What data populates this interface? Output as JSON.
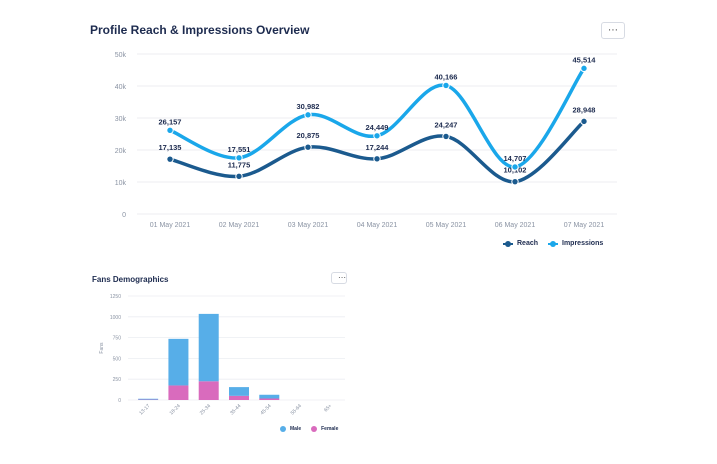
{
  "colors": {
    "reach": "#1b5a8e",
    "impressions": "#1aa7ea",
    "male": "#57aee8",
    "female": "#d96bbd",
    "grid": "#eceef2",
    "tick": "#8a93a3"
  },
  "main": {
    "title": "Profile Reach & Impressions Overview",
    "more_label": "⋯"
  },
  "fans": {
    "title": "Fans Demographics",
    "more_label": "⋯"
  },
  "chart_data": [
    {
      "type": "line",
      "title": "Profile Reach & Impressions Overview",
      "categories": [
        "01 May 2021",
        "02 May 2021",
        "03 May 2021",
        "04 May 2021",
        "05 May 2021",
        "06 May 2021",
        "07 May 2021"
      ],
      "series": [
        {
          "name": "Reach",
          "values": [
            17135,
            11775,
            20875,
            17244,
            24247,
            10102,
            28948
          ],
          "labels": [
            "17,135",
            "11,775",
            "20,875",
            "17,244",
            "24,247",
            "10,102",
            "28,948"
          ]
        },
        {
          "name": "Impressions",
          "values": [
            26157,
            17551,
            30982,
            24449,
            40166,
            14707,
            45514
          ],
          "labels": [
            "26,157",
            "17,551",
            "30,982",
            "24,449",
            "40,166",
            "14,707",
            "45,514"
          ]
        }
      ],
      "ylim": [
        0,
        50000
      ],
      "yticks": [
        "0",
        "10k",
        "20k",
        "30k",
        "40k",
        "50k"
      ],
      "grid": true,
      "legend": "bottom-right"
    },
    {
      "type": "bar",
      "stacked": true,
      "title": "Fans Demographics",
      "ylabel": "Fans",
      "categories": [
        "13-17",
        "18-24",
        "25-34",
        "35-44",
        "45-54",
        "55-64",
        "65+"
      ],
      "series": [
        {
          "name": "Male",
          "values": [
            10,
            560,
            810,
            105,
            45,
            0,
            0
          ]
        },
        {
          "name": "Female",
          "values": [
            5,
            175,
            225,
            50,
            18,
            0,
            0
          ]
        }
      ],
      "ylim": [
        0,
        1250
      ],
      "yticks": [
        "0",
        "250",
        "500",
        "750",
        "1000",
        "1250"
      ],
      "grid": true,
      "legend": "bottom-right"
    }
  ]
}
